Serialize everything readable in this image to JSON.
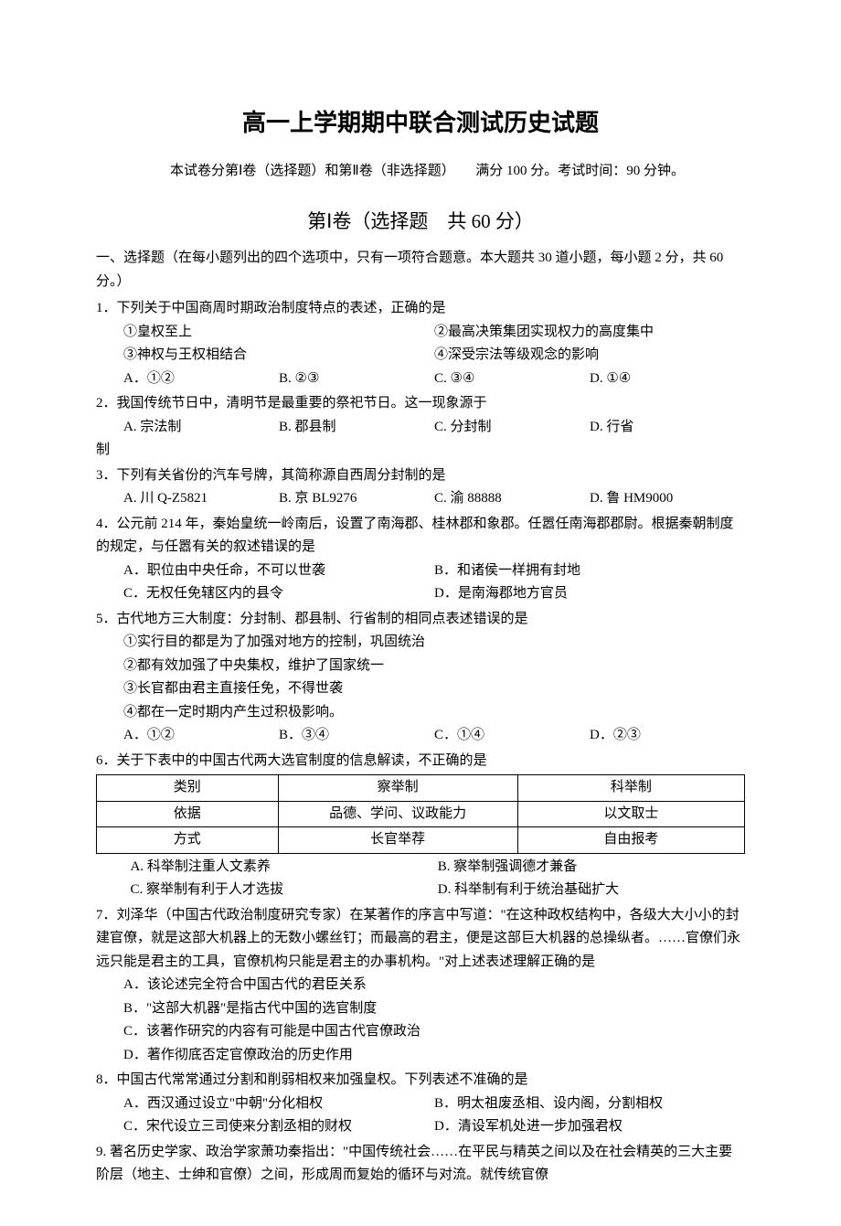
{
  "title": "高一上学期期中联合测试历史试题",
  "subtitle": "本试卷分第Ⅰ卷（选择题）和第Ⅱ卷（非选择题）　　满分 100 分。考试时间：90 分钟。",
  "section": "第Ⅰ卷（选择题　共 60 分）",
  "instructions": "一、选择题（在每小题列出的四个选项中，只有一项符合题意。本大题共 30 道小题，每小题 2 分，共 60 分。）",
  "q1": {
    "stem": "1．下列关于中国商周时期政治制度特点的表述，正确的是",
    "s1": "①皇权至上",
    "s2": "②最高决策集团实现权力的高度集中",
    "s3": "③神权与王权相结合",
    "s4": "④深受宗法等级观念的影响",
    "a": "A．①②",
    "b": "B. ②③",
    "c": "C. ③④",
    "d": "D. ①④"
  },
  "q2": {
    "stem": "2．我国传统节日中，清明节是最重要的祭祀节日。这一现象源于",
    "a": "A. 宗法制",
    "b": "B. 郡县制",
    "c": "C. 分封制",
    "d": "D. 行省",
    "tail": "制"
  },
  "q3": {
    "stem": "3．下列有关省份的汽车号牌，其简称源自西周分封制的是",
    "a": "A. 川 Q-Z5821",
    "b": "B. 京 BL9276",
    "c": "C. 渝 88888",
    "d": "D. 鲁 HM9000"
  },
  "q4": {
    "stem": "4．公元前 214 年，秦始皇统一岭南后，设置了南海郡、桂林郡和象郡。任嚣任南海郡郡尉。根据秦朝制度的规定，与任嚣有关的叙述错误的是",
    "a": "A．职位由中央任命，不可以世袭",
    "b": "B．和诸侯一样拥有封地",
    "c": "C．无权任免辖区内的县令",
    "d": "D．是南海郡地方官员"
  },
  "q5": {
    "stem": "5．古代地方三大制度：分封制、郡县制、行省制的相同点表述错误的是",
    "s1": "①实行目的都是为了加强对地方的控制，巩固统治",
    "s2": "②都有效加强了中央集权，维护了国家统一",
    "s3": "③长官都由君主直接任免，不得世袭",
    "s4": "④都在一定时期内产生过积极影响。",
    "a": "A．①②",
    "b": "B．③④",
    "c": "C．①④",
    "d": "D．②③"
  },
  "q6": {
    "stem": "6．关于下表中的中国古代两大选官制度的信息解读，不正确的是",
    "table": {
      "r1c1": "类别",
      "r1c2": "察举制",
      "r1c3": "科举制",
      "r2c1": "依据",
      "r2c2": "品德、学问、议政能力",
      "r2c3": "以文取士",
      "r3c1": "方式",
      "r3c2": "长官举荐",
      "r3c3": "自由报考"
    },
    "a": "A. 科举制注重人文素养",
    "b": "B. 察举制强调德才兼备",
    "c": "C. 察举制有利于人才选拔",
    "d": "D. 科举制有利于统治基础扩大"
  },
  "q7": {
    "stem": "7．刘泽华（中国古代政治制度研究专家）在某著作的序言中写道：\"在这种政权结构中，各级大大小小的封建官僚，就是这部大机器上的无数小螺丝钉；而最高的君主，便是这部巨大机器的总操纵者。……官僚们永远只能是君主的工具，官僚机构只能是君主的办事机构。\"对上述表述理解正确的是",
    "a": "A．该论述完全符合中国古代的君臣关系",
    "b": "B．\"这部大机器\"是指古代中国的选官制度",
    "c": "C．该著作研究的内容有可能是中国古代官僚政治",
    "d": "D．著作彻底否定官僚政治的历史作用"
  },
  "q8": {
    "stem": "8．中国古代常常通过分割和削弱相权来加强皇权。下列表述不准确的是",
    "a": "A．西汉通过设立\"中朝\"分化相权",
    "b": "B．明太祖废丞相、设内阁，分割相权",
    "c": "C．宋代设立三司使来分割丞相的财权",
    "d": "D．清设军机处进一步加强君权"
  },
  "q9": {
    "stem": "9. 著名历史学家、政治学家萧功秦指出：\"中国传统社会……在平民与精英之间以及在社会精英的三大主要阶层（地主、士绅和官僚）之间，形成周而复始的循环与对流。就传统官僚"
  }
}
